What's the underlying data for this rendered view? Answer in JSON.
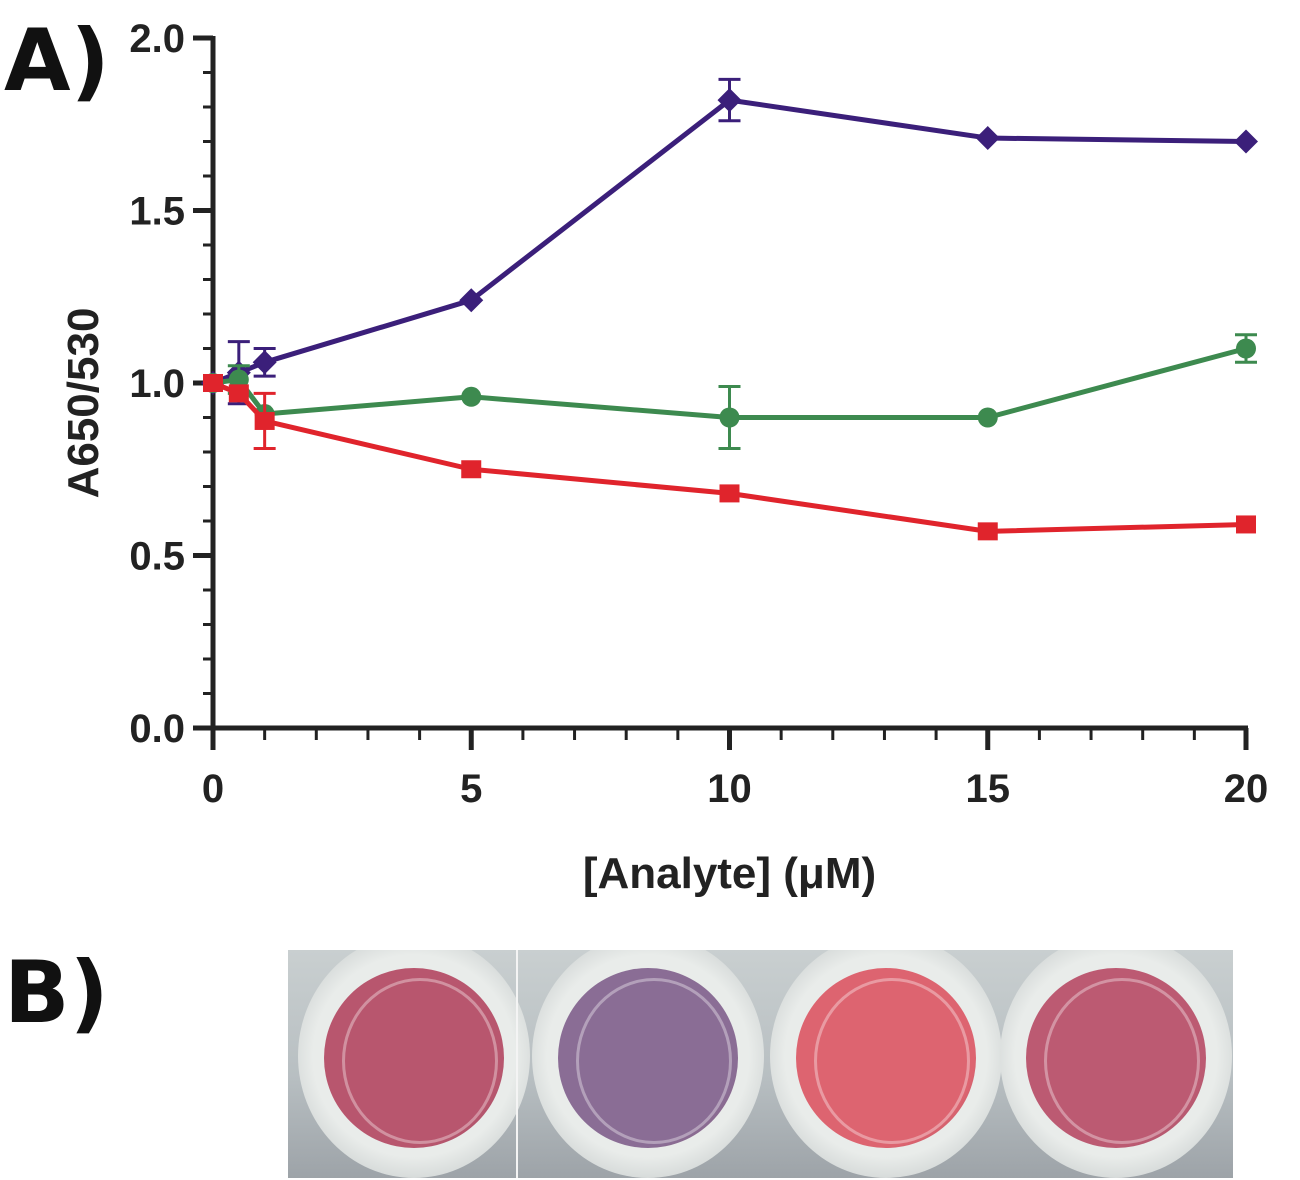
{
  "panel_labels": {
    "a": "A)",
    "b": "B)"
  },
  "chart_data": {
    "type": "line",
    "title": "",
    "xlabel": "[Analyte] (μM)",
    "ylabel": "A650/530",
    "xlim": [
      0,
      20
    ],
    "ylim": [
      0,
      2.0
    ],
    "xticks": [
      0,
      5,
      10,
      15,
      20
    ],
    "yticks": [
      0.0,
      0.5,
      1.0,
      1.5,
      2.0
    ],
    "xtick_labels": [
      "0",
      "5",
      "10",
      "15",
      "20"
    ],
    "ytick_labels": [
      "0.0",
      "0.5",
      "1.0",
      "1.5",
      "2.0"
    ],
    "x_minor_step": 1,
    "y_minor_step": 0.1,
    "series": [
      {
        "name": "purple",
        "color": "#3b1f7a",
        "marker": "diamond",
        "points": [
          {
            "x": 0,
            "y": 1.0,
            "err": 0
          },
          {
            "x": 0.5,
            "y": 1.03,
            "err": 0.09
          },
          {
            "x": 1,
            "y": 1.06,
            "err": 0.04
          },
          {
            "x": 5,
            "y": 1.24,
            "err": 0
          },
          {
            "x": 10,
            "y": 1.82,
            "err": 0.06
          },
          {
            "x": 15,
            "y": 1.71,
            "err": 0
          },
          {
            "x": 20,
            "y": 1.7,
            "err": 0
          }
        ]
      },
      {
        "name": "green",
        "color": "#3d8a4f",
        "marker": "circle",
        "points": [
          {
            "x": 0,
            "y": 1.0,
            "err": 0
          },
          {
            "x": 0.5,
            "y": 1.01,
            "err": 0.04
          },
          {
            "x": 1,
            "y": 0.91,
            "err": 0
          },
          {
            "x": 5,
            "y": 0.96,
            "err": 0
          },
          {
            "x": 10,
            "y": 0.9,
            "err": 0.09
          },
          {
            "x": 15,
            "y": 0.9,
            "err": 0
          },
          {
            "x": 20,
            "y": 1.1,
            "err": 0.04
          }
        ]
      },
      {
        "name": "red",
        "color": "#e0242c",
        "marker": "square",
        "points": [
          {
            "x": 0,
            "y": 1.0,
            "err": 0
          },
          {
            "x": 0.5,
            "y": 0.97,
            "err": 0
          },
          {
            "x": 1,
            "y": 0.89,
            "err": 0.08
          },
          {
            "x": 5,
            "y": 0.75,
            "err": 0
          },
          {
            "x": 10,
            "y": 0.68,
            "err": 0
          },
          {
            "x": 15,
            "y": 0.57,
            "err": 0
          },
          {
            "x": 20,
            "y": 0.59,
            "err": 0
          }
        ]
      }
    ]
  },
  "photo": {
    "wells": [
      {
        "color": "#b8566e"
      },
      {
        "color": "#8a6d95"
      },
      {
        "color": "#dd6470"
      },
      {
        "color": "#bc5a72"
      }
    ]
  }
}
